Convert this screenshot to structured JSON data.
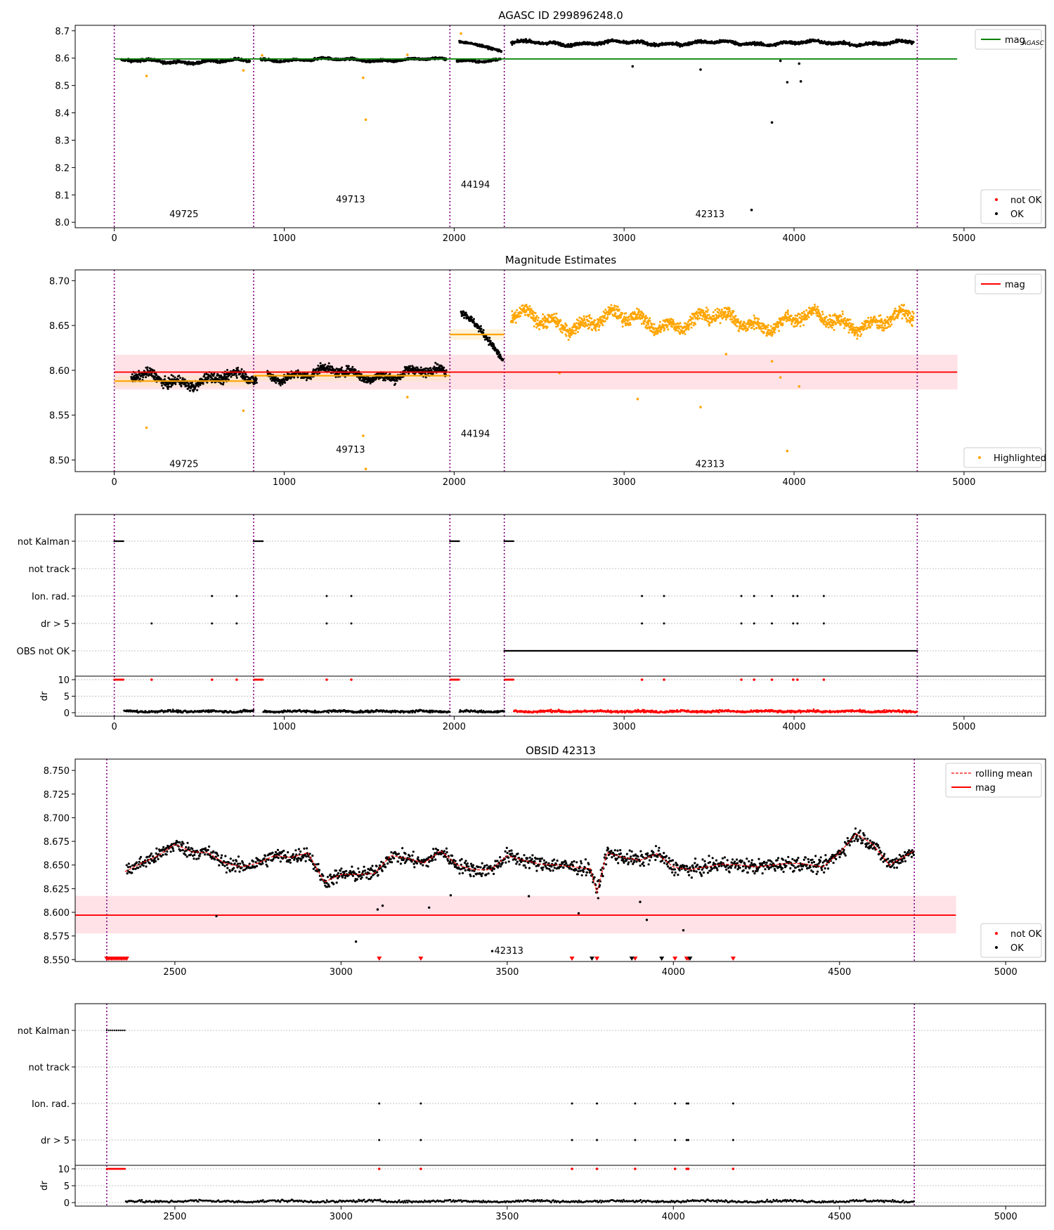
{
  "chart_data": [
    {
      "id": "p1",
      "type": "scatter",
      "title": "AGASC ID 299896248.0",
      "xlim": [
        -230,
        5480
      ],
      "ylim": [
        7.98,
        8.72
      ],
      "xticks": [
        "0",
        "1000",
        "2000",
        "3000",
        "4000",
        "5000"
      ],
      "yticks": [
        "8.0",
        "8.1",
        "8.2",
        "8.3",
        "8.4",
        "8.5",
        "8.6",
        "8.7"
      ],
      "vlines": [
        0,
        820,
        1975,
        2295,
        4725
      ],
      "hline": {
        "y": 8.597,
        "x0": 0,
        "x1": 4960,
        "color": "#008000"
      },
      "obs_labels": [
        {
          "text": "49725",
          "x": 410,
          "y": 8.018
        },
        {
          "text": "49713",
          "x": 1390,
          "y": 8.072
        },
        {
          "text": "44194",
          "x": 2125,
          "y": 8.127
        },
        {
          "text": "42313",
          "x": 3505,
          "y": 8.018
        }
      ],
      "series": [
        {
          "kind": "band",
          "x": [
            0,
            820,
            1975,
            2295
          ],
          "x_end": 4725,
          "y": [
            8.588,
            8.594,
            8.593,
            8.655
          ],
          "amp": [
            0.008,
            0.007,
            0.007,
            0.009
          ],
          "color": "#000000"
        },
        {
          "kind": "ramp",
          "x0": 2030,
          "x1": 2280,
          "y0": 8.66,
          "y1": 8.625,
          "color": "#000000"
        },
        {
          "kind": "points",
          "x": [
            190,
            760,
            870,
            1465,
            1480,
            1725,
            2040
          ],
          "y": [
            8.535,
            8.555,
            8.61,
            8.528,
            8.375,
            8.612,
            8.69
          ],
          "color": "#ffa500"
        },
        {
          "kind": "points",
          "x": [
            3050,
            3450,
            3750,
            3870,
            3920,
            3960,
            4030,
            4040
          ],
          "y": [
            8.57,
            8.558,
            8.045,
            8.365,
            8.59,
            8.512,
            8.58,
            8.515
          ],
          "color": "#000000"
        }
      ],
      "legend": [
        {
          "label": "mag",
          "sub": "AGASC",
          "color": "#008000",
          "marker": "line"
        }
      ],
      "legend2": [
        {
          "label": "not OK",
          "color": "#ff0000",
          "marker": "dot"
        },
        {
          "label": "OK",
          "color": "#000000",
          "marker": "dot"
        }
      ]
    },
    {
      "id": "p2",
      "type": "scatter",
      "title": "Magnitude Estimates",
      "xlim": [
        -230,
        5480
      ],
      "ylim": [
        8.487,
        8.712
      ],
      "xticks": [
        "0",
        "1000",
        "2000",
        "3000",
        "4000",
        "5000"
      ],
      "yticks": [
        "8.50",
        "8.55",
        "8.60",
        "8.65",
        "8.70"
      ],
      "vlines": [
        0,
        820,
        1975,
        2295,
        4725
      ],
      "hline": {
        "y": 8.598,
        "x0": 0,
        "x1": 4960,
        "color": "#ff0000"
      },
      "band": {
        "y0": 8.579,
        "y1": 8.617,
        "color": "#ffc0cb"
      },
      "obs_labels": [
        {
          "text": "49725",
          "x": 410,
          "y": 8.492
        },
        {
          "text": "49713",
          "x": 1390,
          "y": 8.508
        },
        {
          "text": "44194",
          "x": 2125,
          "y": 8.526
        },
        {
          "text": "42313",
          "x": 3505,
          "y": 8.492
        }
      ],
      "segments": [
        {
          "x0": 0,
          "x1": 820,
          "y": 8.588
        },
        {
          "x0": 820,
          "x1": 1975,
          "y": 8.594
        },
        {
          "x0": 1975,
          "x1": 2295,
          "y": 8.64
        }
      ],
      "series": [
        {
          "kind": "band",
          "x": [
            60,
            860
          ],
          "x_end": 1975,
          "y": [
            8.59,
            8.596
          ],
          "amp": [
            0.009,
            0.008
          ],
          "color": "#000000"
        },
        {
          "kind": "ramp",
          "x0": 2040,
          "x1": 2290,
          "y0": 8.665,
          "y1": 8.61,
          "color": "#000000"
        },
        {
          "kind": "band",
          "x": [
            2295
          ],
          "x_end": 4725,
          "y": [
            8.655
          ],
          "amp": [
            0.012
          ],
          "color": "#ffa500"
        },
        {
          "kind": "points",
          "x": [
            190,
            760,
            1465,
            1480,
            1725,
            3080,
            3450,
            3600,
            3870,
            3920,
            3960,
            4030,
            2620
          ],
          "y": [
            8.536,
            8.555,
            8.527,
            8.49,
            8.57,
            8.568,
            8.559,
            8.618,
            8.61,
            8.592,
            8.51,
            8.582,
            8.597
          ],
          "color": "#ffa500"
        }
      ],
      "legend": [
        {
          "label": "mag",
          "color": "#ff0000",
          "marker": "line"
        }
      ],
      "legend2": [
        {
          "label": "Highlighted",
          "color": "#ffa500",
          "marker": "dot"
        }
      ]
    },
    {
      "id": "p3",
      "type": "scatter",
      "xlim": [
        -230,
        5480
      ],
      "categories": [
        "not Kalman",
        "not track",
        "Ion. rad.",
        "dr > 5",
        "OBS not OK"
      ],
      "xticks": [
        "0",
        "1000",
        "2000",
        "3000",
        "4000",
        "5000"
      ],
      "vlines": [
        0,
        820,
        1975,
        2295,
        4725
      ],
      "flags": {
        "not Kalman": [
          [
            0,
            55
          ],
          [
            820,
            875
          ],
          [
            1975,
            2030
          ],
          [
            2295,
            2350
          ]
        ],
        "Ion. rad.": [
          575,
          720,
          1250,
          1395,
          3105,
          3235,
          3690,
          3765,
          3870,
          3995,
          4020,
          4175
        ],
        "dr > 5": [
          220,
          575,
          720,
          1250,
          1395,
          3105,
          3235,
          3690,
          3765,
          3870,
          3995,
          4020,
          4175
        ],
        "OBS not OK": [
          [
            2295,
            4725
          ]
        ]
      },
      "dr_ticks": [
        "0",
        "5",
        "10"
      ],
      "dr_ylabel": "dr",
      "dr_ylim": [
        0,
        10
      ]
    },
    {
      "id": "p4",
      "type": "line",
      "title": "OBSID 42313",
      "xlim": [
        2200,
        5120
      ],
      "ylim": [
        8.548,
        8.762
      ],
      "xticks": [
        "2500",
        "3000",
        "3500",
        "4000",
        "4500",
        "5000"
      ],
      "yticks": [
        "8.550",
        "8.575",
        "8.600",
        "8.625",
        "8.650",
        "8.675",
        "8.700",
        "8.725",
        "8.750"
      ],
      "vlines": [
        2295,
        4725
      ],
      "hline": {
        "y": 8.597,
        "x0": 2200,
        "x1": 4850,
        "color": "#ff0000"
      },
      "band": {
        "y0": 8.578,
        "y1": 8.617,
        "color": "#ffc0cb"
      },
      "obs_labels": [
        {
          "text": "42313",
          "x": 3505,
          "y": 8.556
        }
      ],
      "rolling": {
        "x": [
          2350,
          2400,
          2450,
          2500,
          2550,
          2600,
          2650,
          2700,
          2750,
          2800,
          2850,
          2900,
          2950,
          3000,
          3050,
          3100,
          3150,
          3200,
          3250,
          3300,
          3350,
          3400,
          3450,
          3500,
          3550,
          3600,
          3650,
          3700,
          3750,
          3770,
          3800,
          3850,
          3900,
          3950,
          4000,
          4050,
          4100,
          4150,
          4200,
          4250,
          4300,
          4350,
          4400,
          4450,
          4500,
          4550,
          4600,
          4650,
          4700,
          4725
        ],
        "y": [
          8.643,
          8.652,
          8.66,
          8.672,
          8.664,
          8.663,
          8.652,
          8.648,
          8.652,
          8.66,
          8.658,
          8.663,
          8.632,
          8.64,
          8.64,
          8.641,
          8.66,
          8.657,
          8.652,
          8.665,
          8.65,
          8.645,
          8.645,
          8.66,
          8.655,
          8.651,
          8.65,
          8.648,
          8.646,
          8.621,
          8.663,
          8.658,
          8.655,
          8.662,
          8.648,
          8.645,
          8.648,
          8.651,
          8.65,
          8.648,
          8.65,
          8.652,
          8.651,
          8.648,
          8.663,
          8.683,
          8.672,
          8.65,
          8.66,
          8.665
        ]
      },
      "lowpoints": {
        "x": [
          2625,
          3045,
          3110,
          3125,
          3265,
          3330,
          3455,
          3565,
          3715,
          3900,
          3920,
          4030
        ],
        "y": [
          8.596,
          8.569,
          8.603,
          8.607,
          8.605,
          8.618,
          8.559,
          8.617,
          8.599,
          8.611,
          8.592,
          8.581
        ]
      },
      "triangles": {
        "red_x": [
          2295,
          2310,
          2325,
          2340,
          2355,
          3115,
          3240,
          3695,
          3770,
          3885,
          4005,
          4040,
          4045,
          4180
        ],
        "black_x": [
          3755,
          3875,
          3965,
          4050
        ]
      },
      "legend": [
        {
          "label": "rolling mean",
          "color": "#ff0000",
          "marker": "dashed"
        },
        {
          "label": "mag",
          "color": "#ff0000",
          "marker": "line"
        }
      ],
      "legend2": [
        {
          "label": "not OK",
          "color": "#ff0000",
          "marker": "dot"
        },
        {
          "label": "OK",
          "color": "#000000",
          "marker": "dot"
        }
      ]
    },
    {
      "id": "p5",
      "type": "scatter",
      "xlim": [
        2200,
        5120
      ],
      "categories": [
        "not Kalman",
        "not track",
        "Ion. rad.",
        "dr > 5"
      ],
      "xticks": [
        "2500",
        "3000",
        "3500",
        "4000",
        "4500",
        "5000"
      ],
      "vlines": [
        2295,
        4725
      ],
      "flags": {
        "not Kalman": [
          [
            2295,
            2350
          ]
        ],
        "Ion. rad.": [
          3115,
          3240,
          3695,
          3770,
          3885,
          4005,
          4040,
          4045,
          4180
        ],
        "dr > 5": [
          3115,
          3240,
          3695,
          3770,
          3885,
          4005,
          4040,
          4045,
          4180
        ]
      },
      "dr_ticks": [
        "0",
        "5",
        "10"
      ],
      "dr_ylabel": "dr",
      "dr_ylim": [
        0,
        10
      ]
    }
  ]
}
